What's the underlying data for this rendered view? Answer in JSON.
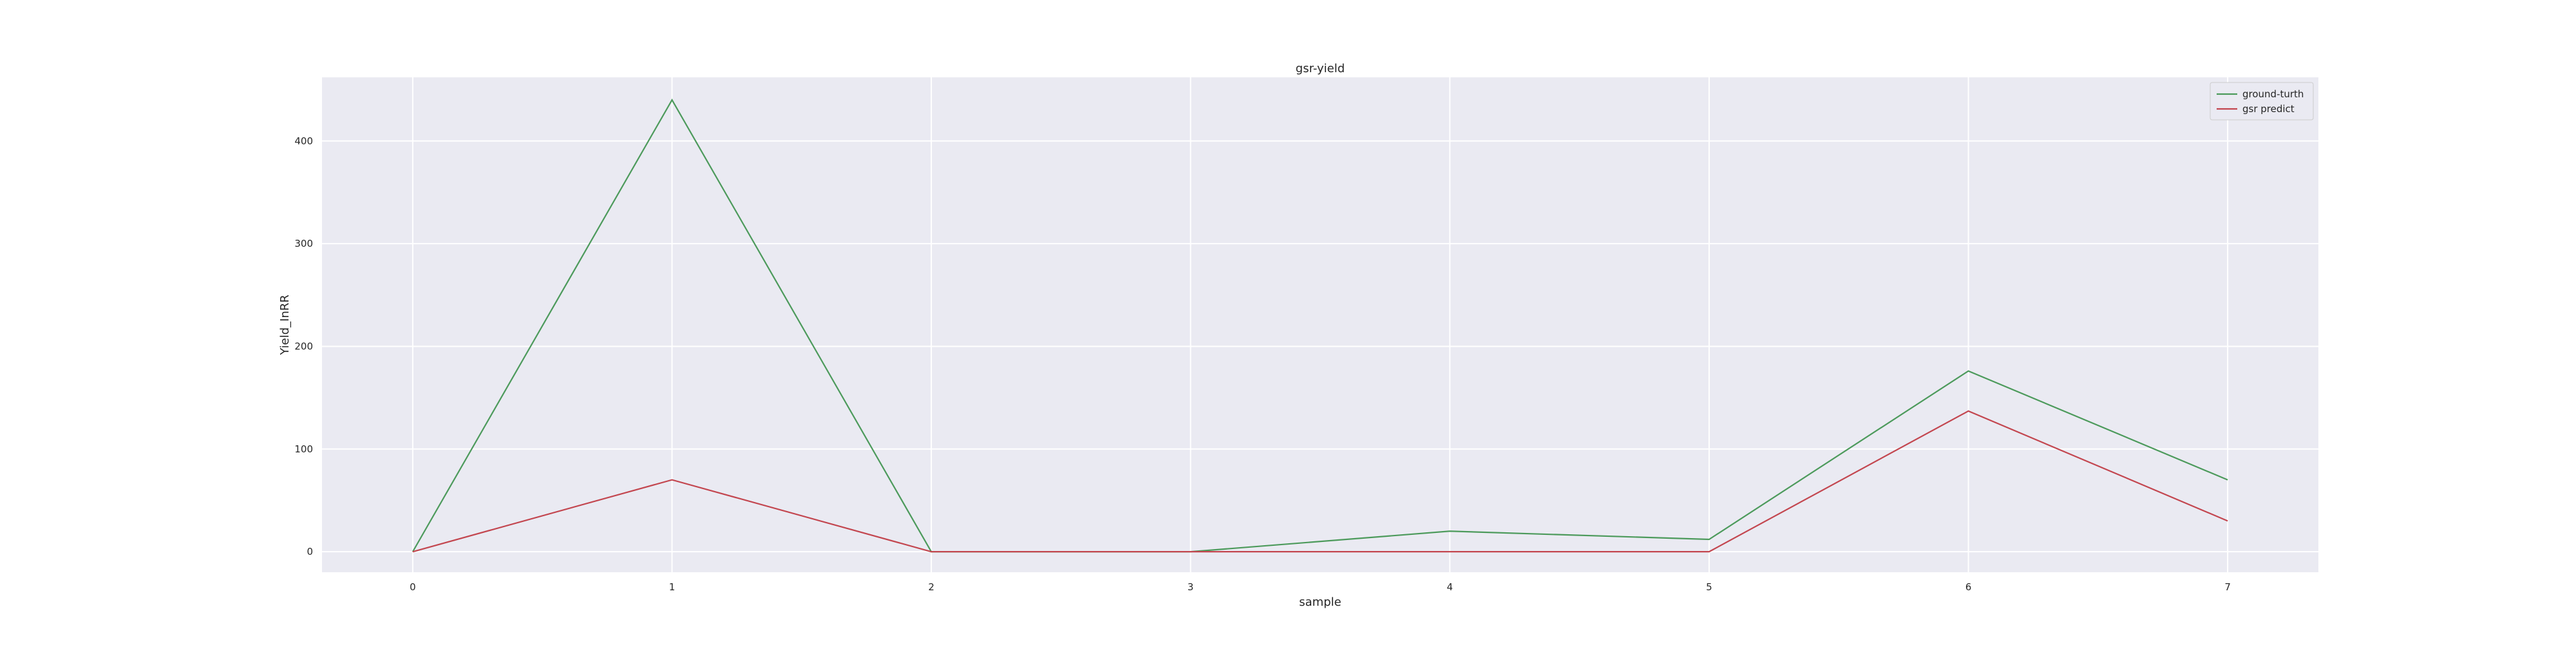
{
  "chart_data": {
    "type": "line",
    "title": "gsr-yield",
    "xlabel": "sample",
    "ylabel": "Yield_InRR",
    "x": [
      0,
      1,
      2,
      3,
      4,
      5,
      6,
      7
    ],
    "xticks": [
      "0",
      "1",
      "2",
      "3",
      "4",
      "5",
      "6",
      "7"
    ],
    "yticks": [
      "0",
      "100",
      "200",
      "300",
      "400"
    ],
    "xlim": [
      -0.35,
      7.35
    ],
    "ylim": [
      -20,
      462
    ],
    "grid": true,
    "legend_position": "top-right",
    "series": [
      {
        "name": "ground-turth",
        "color": "#4c9a5b",
        "values": [
          0,
          440,
          0,
          0,
          20,
          12,
          176,
          70
        ]
      },
      {
        "name": "gsr predict",
        "color": "#c3464f",
        "values": [
          0,
          70,
          0,
          0,
          0,
          0,
          137,
          30
        ]
      }
    ]
  },
  "style": {
    "plot_background": "#eaeaf2",
    "grid_color": "#ffffff"
  }
}
